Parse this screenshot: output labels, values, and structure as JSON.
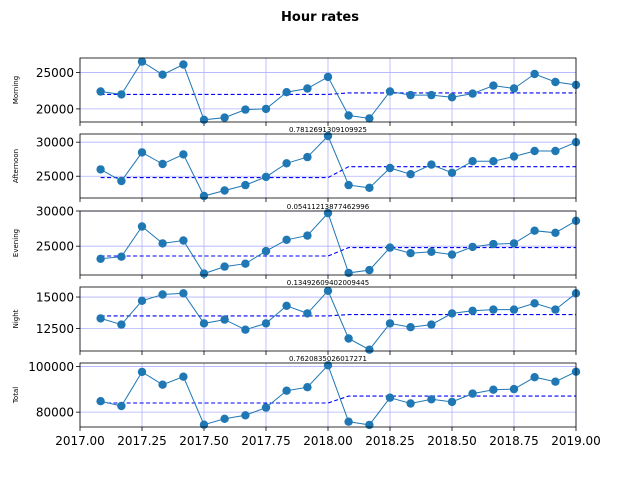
{
  "figure": {
    "title": "Hour rates"
  },
  "chart_data": {
    "type": "line",
    "title": "Hour rates",
    "x": [
      2017.083,
      2017.167,
      2017.25,
      2017.333,
      2017.417,
      2017.5,
      2017.583,
      2017.667,
      2017.75,
      2017.833,
      2017.917,
      2018.0,
      2018.083,
      2018.167,
      2018.25,
      2018.333,
      2018.417,
      2018.5,
      2018.583,
      2018.667,
      2018.75,
      2018.833,
      2018.917,
      2019.0
    ],
    "xlim": [
      2017.0,
      2019.0
    ],
    "xticks": [
      "2017.00",
      "2017.25",
      "2017.50",
      "2017.75",
      "2018.00",
      "2018.25",
      "2018.50",
      "2018.75",
      "2019.00"
    ],
    "grid": true,
    "panels": [
      {
        "ylabel": "Morning",
        "ylim": [
          18200,
          27000
        ],
        "yticks": [
          20000,
          25000
        ],
        "note": "",
        "values": [
          22400,
          22000,
          26500,
          24700,
          26100,
          18500,
          18800,
          19900,
          20000,
          22300,
          22800,
          24400,
          19100,
          18700,
          22400,
          21900,
          21900,
          21600,
          22100,
          23200,
          22800,
          24800,
          23700,
          23300
        ],
        "step": [
          22000,
          22000,
          22000,
          22000,
          22000,
          22000,
          22000,
          22000,
          22000,
          22000,
          22000,
          22000,
          22200,
          22200,
          22200,
          22200,
          22200,
          22200,
          22200,
          22200,
          22200,
          22200,
          22200,
          22200
        ]
      },
      {
        "ylabel": "Afternoon",
        "ylim": [
          21800,
          31200
        ],
        "yticks": [
          25000,
          30000
        ],
        "note": "0.7812691309109925",
        "values": [
          26000,
          24300,
          28500,
          26800,
          28200,
          22100,
          22900,
          23700,
          24900,
          26900,
          27800,
          30900,
          23700,
          23300,
          26200,
          25300,
          26700,
          25500,
          27200,
          27200,
          27900,
          28700,
          28700,
          30000
        ],
        "step": [
          24800,
          24800,
          24800,
          24800,
          24800,
          24800,
          24800,
          24800,
          24800,
          24800,
          24800,
          24800,
          26400,
          26400,
          26400,
          26400,
          26400,
          26400,
          26400,
          26400,
          26400,
          26400,
          26400,
          26400
        ]
      },
      {
        "ylabel": "Evening",
        "ylim": [
          20900,
          30000
        ],
        "yticks": [
          25000,
          30000
        ],
        "note": "0.05411213877462996",
        "values": [
          23200,
          23500,
          27800,
          25400,
          25800,
          21100,
          22100,
          22500,
          24300,
          25900,
          26500,
          29700,
          21200,
          21600,
          24800,
          24000,
          24200,
          23800,
          24900,
          25300,
          25400,
          27200,
          26900,
          28600
        ],
        "step": [
          23600,
          23600,
          23600,
          23600,
          23600,
          23600,
          23600,
          23600,
          23600,
          23600,
          23600,
          23600,
          24800,
          24800,
          24800,
          24800,
          24800,
          24800,
          24800,
          24800,
          24800,
          24800,
          24800,
          24800
        ]
      },
      {
        "ylabel": "Night",
        "ylim": [
          10700,
          15800
        ],
        "yticks": [
          12500,
          15000
        ],
        "note": "0.13492609402009445",
        "values": [
          13300,
          12800,
          14700,
          15200,
          15300,
          12900,
          13200,
          12400,
          12900,
          14300,
          13700,
          15500,
          11700,
          10800,
          12900,
          12600,
          12800,
          13700,
          13900,
          14000,
          14000,
          14500,
          14000,
          15300
        ],
        "step": [
          13500,
          13500,
          13500,
          13500,
          13500,
          13500,
          13500,
          13500,
          13500,
          13500,
          13500,
          13500,
          13600,
          13600,
          13600,
          13600,
          13600,
          13600,
          13600,
          13600,
          13600,
          13600,
          13600,
          13600
        ]
      },
      {
        "ylabel": "Total",
        "ylim": [
          73500,
          101500
        ],
        "yticks": [
          80000,
          100000
        ],
        "note": "0.7620835026017271",
        "values": [
          84800,
          82700,
          97600,
          92000,
          95500,
          74500,
          77100,
          78600,
          82000,
          89400,
          90900,
          100500,
          75800,
          74400,
          86300,
          83800,
          85600,
          84500,
          88100,
          89800,
          90100,
          95300,
          93300,
          97700
        ],
        "step": [
          84000,
          84000,
          84000,
          84000,
          84000,
          84000,
          84000,
          84000,
          84000,
          84000,
          84000,
          84000,
          87000,
          87000,
          87000,
          87000,
          87000,
          87000,
          87000,
          87000,
          87000,
          87000,
          87000,
          87000
        ]
      }
    ],
    "colors": {
      "series": "#1f77b4",
      "step": "#0000ff",
      "grid": "#b0b0ff"
    }
  }
}
